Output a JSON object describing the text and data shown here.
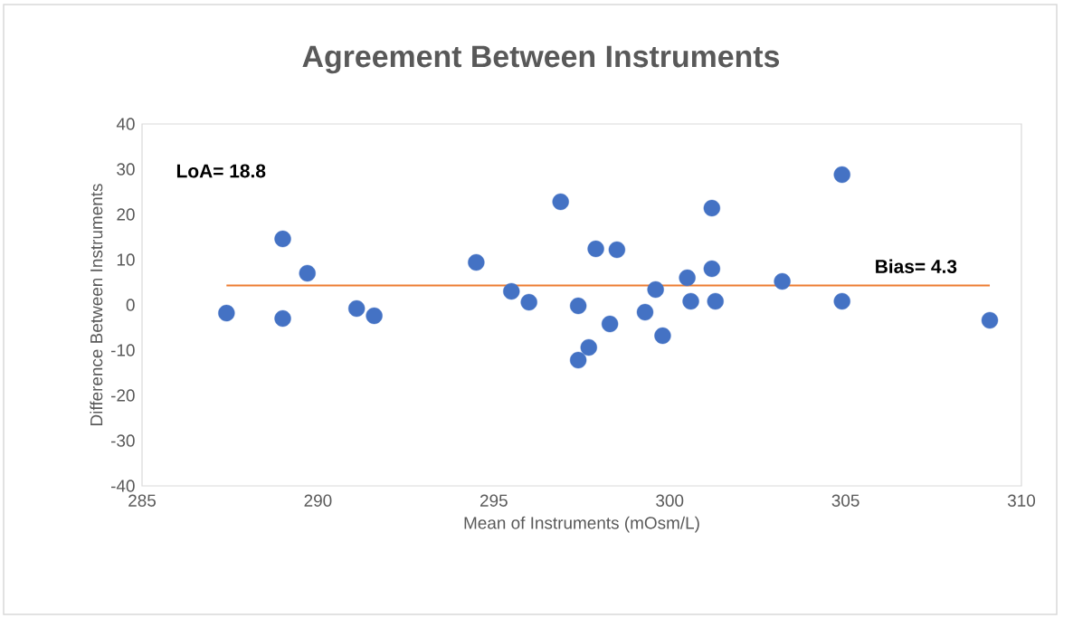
{
  "chart_data": {
    "type": "scatter",
    "title": "Agreement Between Instruments",
    "xlabel": "Mean of Instruments (mOsm/L)",
    "ylabel": "Difference Between Instruments",
    "xlim": [
      285,
      310
    ],
    "xticks": [
      285,
      290,
      295,
      300,
      305,
      310
    ],
    "ylim": [
      -40,
      40
    ],
    "yticks": [
      -40,
      -30,
      -20,
      -10,
      0,
      10,
      20,
      30,
      40
    ],
    "grid": false,
    "series": [
      {
        "marker": "circle",
        "color": "#4472c4",
        "x": [
          287.4,
          289.0,
          289.0,
          289.7,
          291.1,
          291.6,
          294.5,
          295.5,
          296.0,
          296.9,
          297.4,
          297.4,
          297.7,
          297.9,
          298.5,
          298.3,
          299.3,
          299.6,
          299.8,
          300.5,
          300.6,
          301.2,
          301.2,
          301.3,
          303.2,
          304.9,
          304.9,
          309.1
        ],
        "values": [
          -1.8,
          -3.0,
          14.6,
          7.0,
          -0.8,
          -2.4,
          9.4,
          3.0,
          0.6,
          22.8,
          -0.2,
          -12.2,
          -9.4,
          12.4,
          12.2,
          -4.2,
          -1.6,
          3.4,
          -6.8,
          6.0,
          0.8,
          21.4,
          8.0,
          0.8,
          5.2,
          28.8,
          0.8,
          -3.4
        ]
      },
      {
        "type": "line",
        "color": "#ed7d31",
        "x": [
          287.4,
          309.1
        ],
        "values": [
          4.3,
          4.3
        ]
      }
    ],
    "annotations": [
      "LoA= 18.8",
      {
        "text": "Bias= 4.3",
        "x": 307.0,
        "y": 4.3
      }
    ]
  }
}
